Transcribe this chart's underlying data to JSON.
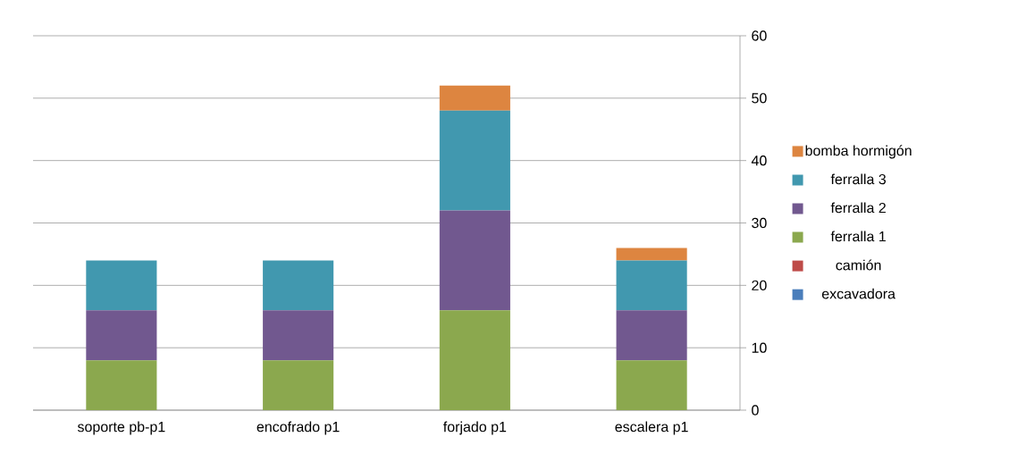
{
  "chart_data": {
    "type": "bar",
    "stacked": true,
    "categories": [
      "soporte pb-p1",
      "encofrado p1",
      "forjado p1",
      "escalera p1"
    ],
    "series": [
      {
        "name": "excavadora",
        "color": "#4a7ebb",
        "values": [
          0,
          0,
          0,
          0
        ]
      },
      {
        "name": "camión",
        "color": "#be4b48",
        "values": [
          0,
          0,
          0,
          0
        ]
      },
      {
        "name": "ferralla 1",
        "color": "#8ba84e",
        "values": [
          8,
          8,
          16,
          8
        ]
      },
      {
        "name": "ferralla 2",
        "color": "#71588f",
        "values": [
          8,
          8,
          16,
          8
        ]
      },
      {
        "name": "ferralla 3",
        "color": "#4198af",
        "values": [
          8,
          8,
          16,
          8
        ]
      },
      {
        "name": "bomba hormigón",
        "color": "#dd8540",
        "values": [
          0,
          0,
          4,
          2
        ]
      }
    ],
    "ylim": [
      0,
      60
    ],
    "yticks": [
      0,
      10,
      20,
      30,
      40,
      50,
      60
    ],
    "grid": "y",
    "legend": "right"
  }
}
